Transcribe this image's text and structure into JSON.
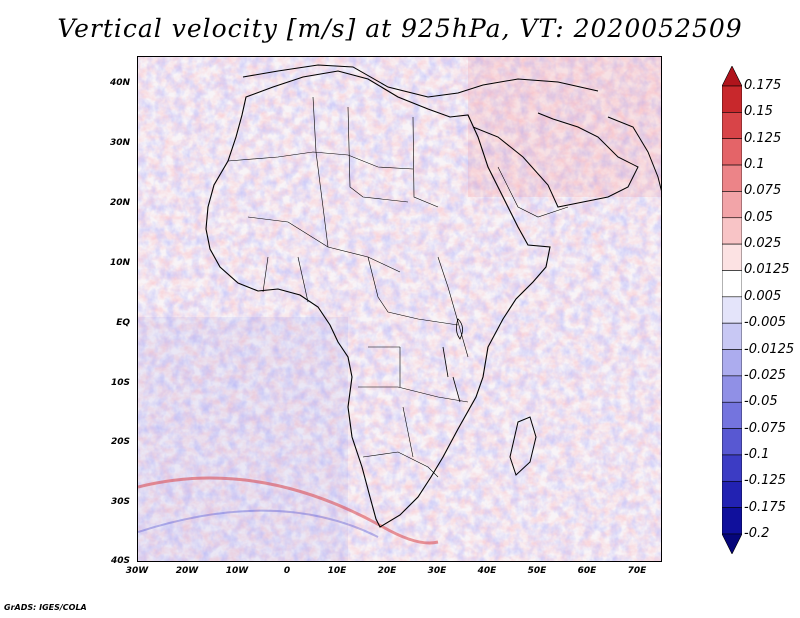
{
  "title": "Vertical velocity [m/s] at 925hPa, VT: 2020052509",
  "footer": "GrADS: IGES/COLA",
  "map": {
    "variable": "Vertical velocity",
    "units": "m/s",
    "level": "925hPa",
    "valid_time": "2020052509",
    "lat_labels": [
      "40N",
      "30N",
      "20N",
      "10N",
      "EQ",
      "10S",
      "20S",
      "30S",
      "40S"
    ],
    "lon_labels": [
      "30W",
      "20W",
      "10W",
      "0",
      "10E",
      "20E",
      "30E",
      "40E",
      "50E",
      "60E",
      "70E"
    ]
  },
  "colorbar": {
    "labels": [
      "0.175",
      "0.15",
      "0.125",
      "0.1",
      "0.075",
      "0.05",
      "0.025",
      "0.0125",
      "0.005",
      "-0.005",
      "-0.0125",
      "-0.025",
      "-0.05",
      "-0.075",
      "-0.1",
      "-0.125",
      "-0.175",
      "-0.2"
    ],
    "colors": [
      "#b0141c",
      "#c8282c",
      "#d84448",
      "#e46468",
      "#ec8488",
      "#f2a4a8",
      "#f8c4c6",
      "#fce2e3",
      "#ffffff",
      "#e4e4fa",
      "#c8c8f4",
      "#acacee",
      "#9090e6",
      "#7474de",
      "#5858d2",
      "#3c3cc4",
      "#2222b2",
      "#10109c",
      "#06067a"
    ]
  }
}
